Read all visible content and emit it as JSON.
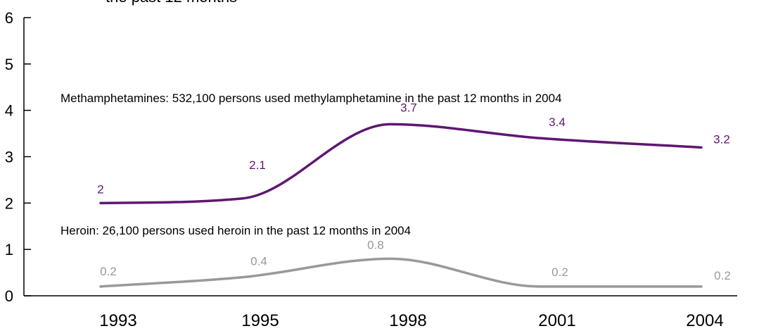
{
  "chart_data": {
    "type": "line",
    "title": "the past 12 months",
    "categories": [
      "1993",
      "1995",
      "1998",
      "2001",
      "2004"
    ],
    "ylim": [
      0,
      6
    ],
    "yticks": [
      "0",
      "1",
      "2",
      "3",
      "4",
      "5",
      "6"
    ],
    "grid": false,
    "series": [
      {
        "name": "Methamphetamines",
        "note": "Methamphetamines: 532,100 persons used methylamphetamine in the past 12 months in 2004",
        "values": [
          2,
          2.1,
          3.7,
          3.4,
          3.2
        ],
        "labels": [
          "2",
          "2.1",
          "3.7",
          "3.4",
          "3.2"
        ],
        "color": "#5e1772"
      },
      {
        "name": "Heroin",
        "note": "Heroin: 26,100 persons used heroin in the past 12 months in 2004",
        "values": [
          0.2,
          0.4,
          0.8,
          0.2,
          0.2
        ],
        "labels": [
          "0.2",
          "0.4",
          "0.8",
          "0.2",
          "0.2"
        ],
        "color": "#999999"
      }
    ]
  }
}
